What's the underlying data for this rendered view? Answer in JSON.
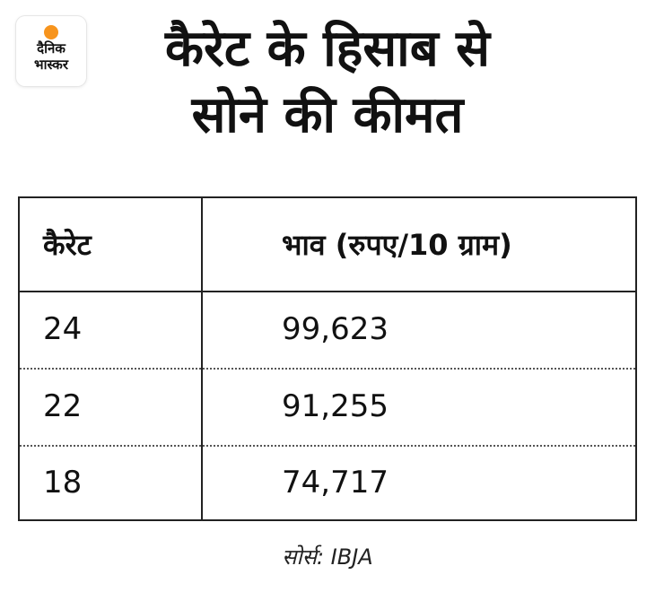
{
  "logo": {
    "line1": "दैनिक",
    "line2": "भास्कर"
  },
  "title": {
    "line1": "कैरेट के हिसाब से",
    "line2": "सोने की कीमत"
  },
  "table": {
    "headers": [
      "कैरेट",
      "भाव (रुपए/10 ग्राम)"
    ],
    "rows": [
      [
        "24",
        "99,623"
      ],
      [
        "22",
        "91,255"
      ],
      [
        "18",
        "74,717"
      ]
    ]
  },
  "source": "सोर्स: IBJA",
  "colors": {
    "logo_sun": "#f7941d",
    "text": "#111111",
    "border": "#222222"
  }
}
